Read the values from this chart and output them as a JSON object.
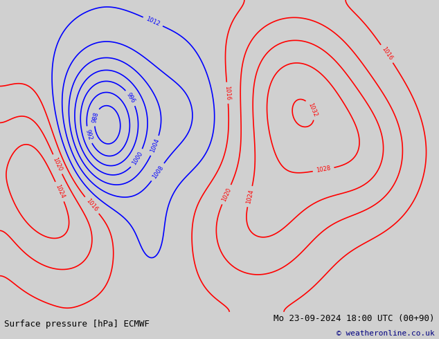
{
  "title_left": "Surface pressure [hPa] ECMWF",
  "title_right": "Mo 23-09-2024 18:00 UTC (00+90)",
  "copyright": "© weatheronline.co.uk",
  "bg_color": "#d0d0d0",
  "land_color": "#b8d4a8",
  "ocean_color": "#d0d0d0",
  "fig_width": 6.34,
  "fig_height": 4.9,
  "dpi": 100,
  "bottom_bar_color": "#ffffff",
  "bottom_bar_height": 0.08,
  "text_color": "#000000",
  "title_fontsize": 9,
  "copyright_color": "#000080",
  "copyright_fontsize": 8
}
